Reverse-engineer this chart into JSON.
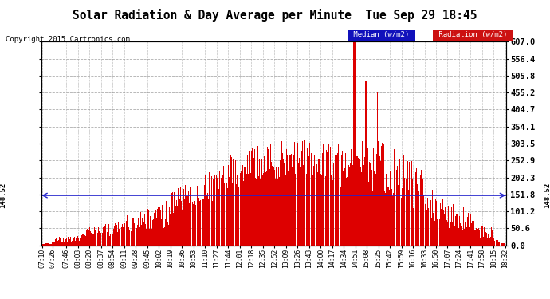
{
  "title": "Solar Radiation & Day Average per Minute  Tue Sep 29 18:45",
  "copyright": "Copyright 2015 Cartronics.com",
  "median_value": 148.52,
  "median_label": "148.52",
  "ymax": 607.0,
  "ymin": 0.0,
  "yticks": [
    0.0,
    50.6,
    101.2,
    151.8,
    202.3,
    252.9,
    303.5,
    354.1,
    404.7,
    455.2,
    505.8,
    556.4,
    607.0
  ],
  "background_color": "#ffffff",
  "bar_color": "#dd0000",
  "median_color": "#2222cc",
  "grid_color": "#999999",
  "title_color": "#000000",
  "legend_median_bg": "#1111bb",
  "legend_radiation_bg": "#cc1111",
  "x_tick_labels": [
    "07:10",
    "07:26",
    "07:46",
    "08:03",
    "08:20",
    "08:37",
    "08:54",
    "09:11",
    "09:28",
    "09:45",
    "10:02",
    "10:19",
    "10:36",
    "10:53",
    "11:10",
    "11:27",
    "11:44",
    "12:01",
    "12:18",
    "12:35",
    "12:52",
    "13:09",
    "13:26",
    "13:43",
    "14:00",
    "14:17",
    "14:34",
    "14:51",
    "15:08",
    "15:25",
    "15:42",
    "15:59",
    "16:16",
    "16:33",
    "16:50",
    "17:07",
    "17:24",
    "17:41",
    "17:58",
    "18:15",
    "18:32"
  ],
  "num_bars": 680
}
